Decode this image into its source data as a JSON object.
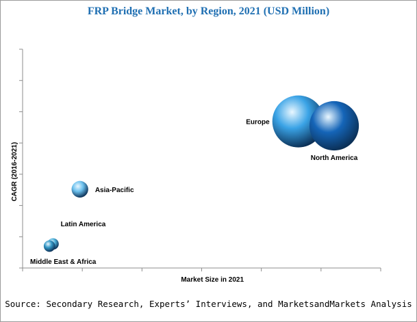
{
  "chart_data": {
    "type": "bubble",
    "title": "FRP Bridge Market, by Region, 2021 (USD Million)",
    "xlabel": "Market Size in 2021",
    "ylabel": "CAGR (2016-2021)",
    "grid": false,
    "legend": "none",
    "axis_tick_labels": false,
    "series": [
      {
        "name": "North America",
        "x": 0.87,
        "y": 0.65,
        "size": 0.95,
        "color": "#1565b8"
      },
      {
        "name": "Europe",
        "x": 0.77,
        "y": 0.67,
        "size": 1.0,
        "color": "#3aa3e6"
      },
      {
        "name": "Asia-Pacific",
        "x": 0.16,
        "y": 0.36,
        "size": 0.32,
        "color": "#6cc1ee"
      },
      {
        "name": "Latin America",
        "x": 0.085,
        "y": 0.11,
        "size": 0.22,
        "color": "#4aaed8"
      },
      {
        "name": "Middle East & Africa",
        "x": 0.075,
        "y": 0.1,
        "size": 0.22,
        "color": "#3498c6"
      }
    ]
  },
  "source": "Source: Secondary Research, Experts’ Interviews, and MarketsandMarkets Analysis"
}
